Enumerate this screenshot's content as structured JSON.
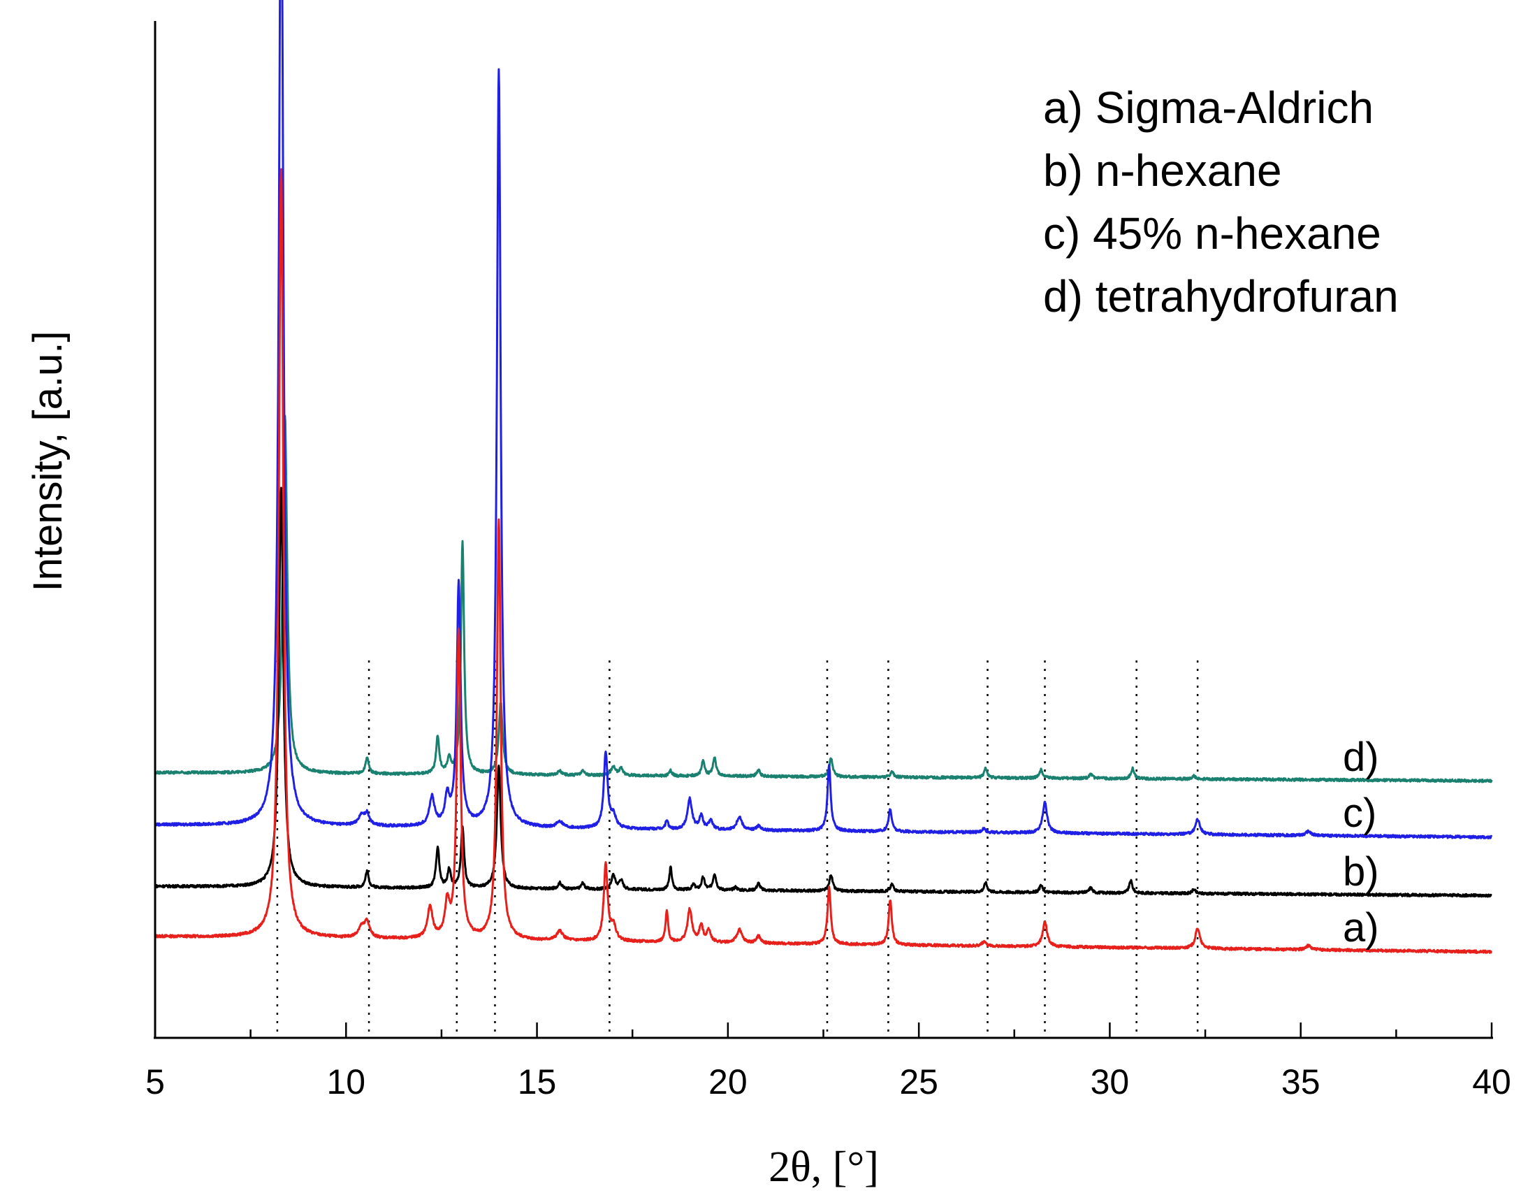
{
  "chart_data": {
    "type": "line",
    "title": "",
    "xlabel": "2θ, [°]",
    "ylabel": "Intensity, [a.u.]",
    "xlim": [
      5,
      40
    ],
    "ylim": [
      0,
      100
    ],
    "x_ticks": [
      5,
      10,
      15,
      20,
      25,
      30,
      35,
      40
    ],
    "x_tick_labels": [
      "5",
      "10",
      "15",
      "20",
      "25",
      "30",
      "35",
      "40"
    ],
    "y_ticks_shown": false,
    "grid": false,
    "legend_position": "top-right",
    "legend_entries": [
      "a) Sigma-Aldrich",
      "b) n-hexane",
      "c) 45% n-hexane",
      "d) tetrahydrofuran"
    ],
    "reference_lines_2theta": [
      8.2,
      10.6,
      12.9,
      13.9,
      16.9,
      22.6,
      24.2,
      26.8,
      28.3,
      30.7,
      32.3
    ],
    "series": [
      {
        "name": "a) Sigma-Aldrich",
        "label": "a)",
        "color": "#e8201c",
        "baseline": [
          [
            5,
            9.9
          ],
          [
            40,
            8.4
          ]
        ],
        "peaks": [
          [
            8.3,
            75,
            0.07
          ],
          [
            10.4,
            1.0,
            0.1
          ],
          [
            10.55,
            1.5,
            0.08
          ],
          [
            12.2,
            3.0,
            0.08
          ],
          [
            12.65,
            3.2,
            0.07
          ],
          [
            12.95,
            30,
            0.06
          ],
          [
            14.0,
            41,
            0.06
          ],
          [
            15.6,
            0.9,
            0.1
          ],
          [
            16.8,
            7.4,
            0.06
          ],
          [
            17.0,
            1.5,
            0.08
          ],
          [
            18.4,
            3.0,
            0.04
          ],
          [
            19.0,
            3.2,
            0.07
          ],
          [
            19.3,
            1.6,
            0.06
          ],
          [
            19.5,
            1.2,
            0.06
          ],
          [
            20.3,
            1.3,
            0.08
          ],
          [
            20.8,
            0.7,
            0.06
          ],
          [
            22.65,
            5.6,
            0.05
          ],
          [
            24.25,
            4.4,
            0.05
          ],
          [
            26.7,
            0.4,
            0.06
          ],
          [
            28.3,
            2.4,
            0.07
          ],
          [
            32.3,
            2.0,
            0.07
          ],
          [
            35.2,
            0.4,
            0.08
          ]
        ]
      },
      {
        "name": "b) n-hexane",
        "label": "b)",
        "color": "#000000",
        "baseline": [
          [
            5,
            14.8
          ],
          [
            40,
            13.9
          ]
        ],
        "peaks": [
          [
            8.3,
            39,
            0.07
          ],
          [
            10.55,
            1.6,
            0.05
          ],
          [
            12.4,
            4.0,
            0.05
          ],
          [
            12.7,
            1.8,
            0.05
          ],
          [
            13.05,
            6.0,
            0.05
          ],
          [
            14.0,
            12,
            0.06
          ],
          [
            15.6,
            0.6,
            0.06
          ],
          [
            16.2,
            0.6,
            0.05
          ],
          [
            17.0,
            1.4,
            0.06
          ],
          [
            17.2,
            0.9,
            0.06
          ],
          [
            18.5,
            2.2,
            0.04
          ],
          [
            19.1,
            0.5,
            0.05
          ],
          [
            19.35,
            1.2,
            0.05
          ],
          [
            19.65,
            1.6,
            0.05
          ],
          [
            20.2,
            0.3,
            0.05
          ],
          [
            20.8,
            0.7,
            0.05
          ],
          [
            22.7,
            1.6,
            0.05
          ],
          [
            24.3,
            0.7,
            0.05
          ],
          [
            26.75,
            0.9,
            0.05
          ],
          [
            28.2,
            0.7,
            0.05
          ],
          [
            29.5,
            0.5,
            0.05
          ],
          [
            30.55,
            1.2,
            0.05
          ],
          [
            32.2,
            0.4,
            0.05
          ]
        ]
      },
      {
        "name": "c) 45% n-hexane",
        "label": "c)",
        "color": "#1f1fe6",
        "baseline": [
          [
            5,
            20.8
          ],
          [
            40,
            19.6
          ]
        ],
        "peaks": [
          [
            8.3,
            97,
            0.07
          ],
          [
            10.4,
            0.9,
            0.1
          ],
          [
            10.55,
            1.1,
            0.08
          ],
          [
            12.25,
            2.8,
            0.08
          ],
          [
            12.65,
            2.7,
            0.07
          ],
          [
            12.95,
            23.7,
            0.06
          ],
          [
            14.0,
            74,
            0.06
          ],
          [
            15.6,
            0.6,
            0.1
          ],
          [
            16.8,
            7.4,
            0.06
          ],
          [
            17.0,
            1.2,
            0.08
          ],
          [
            18.4,
            0.9,
            0.04
          ],
          [
            19.0,
            3.0,
            0.07
          ],
          [
            19.3,
            1.3,
            0.06
          ],
          [
            19.55,
            0.9,
            0.06
          ],
          [
            20.3,
            1.3,
            0.08
          ],
          [
            20.8,
            0.4,
            0.06
          ],
          [
            22.65,
            6.4,
            0.05
          ],
          [
            24.25,
            2.2,
            0.05
          ],
          [
            26.7,
            0.4,
            0.06
          ],
          [
            28.3,
            3.0,
            0.07
          ],
          [
            32.3,
            1.5,
            0.07
          ],
          [
            35.2,
            0.4,
            0.08
          ]
        ]
      },
      {
        "name": "d) tetrahydrofuran",
        "label": "d)",
        "color": "#1a8070",
        "baseline": [
          [
            5,
            25.9
          ],
          [
            40,
            25.1
          ]
        ],
        "peaks": [
          [
            8.4,
            35,
            0.07
          ],
          [
            10.55,
            1.6,
            0.05
          ],
          [
            12.4,
            3.6,
            0.05
          ],
          [
            12.7,
            1.4,
            0.05
          ],
          [
            13.05,
            22.7,
            0.05
          ],
          [
            14.05,
            7,
            0.06
          ],
          [
            15.6,
            0.4,
            0.06
          ],
          [
            16.2,
            0.4,
            0.05
          ],
          [
            17.0,
            0.9,
            0.06
          ],
          [
            17.2,
            0.7,
            0.06
          ],
          [
            18.5,
            0.5,
            0.04
          ],
          [
            19.35,
            1.4,
            0.05
          ],
          [
            19.65,
            1.8,
            0.05
          ],
          [
            20.8,
            0.6,
            0.05
          ],
          [
            22.7,
            1.9,
            0.05
          ],
          [
            24.3,
            0.5,
            0.05
          ],
          [
            26.75,
            0.9,
            0.05
          ],
          [
            28.2,
            0.8,
            0.05
          ],
          [
            29.5,
            0.4,
            0.05
          ],
          [
            30.6,
            1.0,
            0.05
          ],
          [
            32.2,
            0.3,
            0.05
          ]
        ]
      }
    ]
  }
}
